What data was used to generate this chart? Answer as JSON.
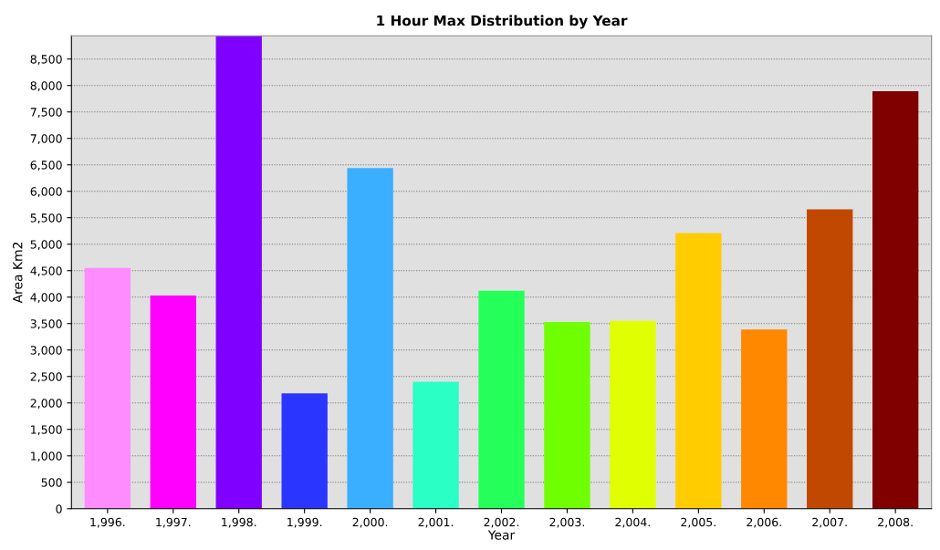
{
  "chart_data": {
    "type": "bar",
    "title": "1 Hour Max Distribution by Year",
    "xlabel": "Year",
    "ylabel": "Area Km2",
    "categories": [
      "1,996.",
      "1,997.",
      "1,998.",
      "1,999.",
      "2,000.",
      "2,001.",
      "2,002.",
      "2,003.",
      "2,004.",
      "2,005.",
      "2,006.",
      "2,007.",
      "2,008."
    ],
    "values": [
      4550,
      4030,
      8940,
      2180,
      6440,
      2400,
      4120,
      3530,
      3550,
      5210,
      3390,
      5660,
      7890
    ],
    "colors": [
      "#ff8cff",
      "#ff00ff",
      "#8000ff",
      "#2a35ff",
      "#3aaeff",
      "#2affc6",
      "#24ff5a",
      "#70ff00",
      "#e0ff00",
      "#ffcc00",
      "#ff8800",
      "#c04800",
      "#800000"
    ],
    "ylim": [
      0,
      8940
    ],
    "yticks": [
      {
        "value": 0,
        "label": "0"
      },
      {
        "value": 500,
        "label": "500"
      },
      {
        "value": 1000,
        "label": "1,000"
      },
      {
        "value": 1500,
        "label": "1,500"
      },
      {
        "value": 2000,
        "label": "2,000"
      },
      {
        "value": 2500,
        "label": "2,500"
      },
      {
        "value": 3000,
        "label": "3,000"
      },
      {
        "value": 3500,
        "label": "3,500"
      },
      {
        "value": 4000,
        "label": "4,000"
      },
      {
        "value": 4500,
        "label": "4,500"
      },
      {
        "value": 5000,
        "label": "5,000"
      },
      {
        "value": 5500,
        "label": "5,500"
      },
      {
        "value": 6000,
        "label": "6,000"
      },
      {
        "value": 6500,
        "label": "6,500"
      },
      {
        "value": 7000,
        "label": "7,000"
      },
      {
        "value": 7500,
        "label": "7,500"
      },
      {
        "value": 8000,
        "label": "8,000"
      },
      {
        "value": 8500,
        "label": "8,500"
      }
    ],
    "grid": "y",
    "legend": false
  }
}
